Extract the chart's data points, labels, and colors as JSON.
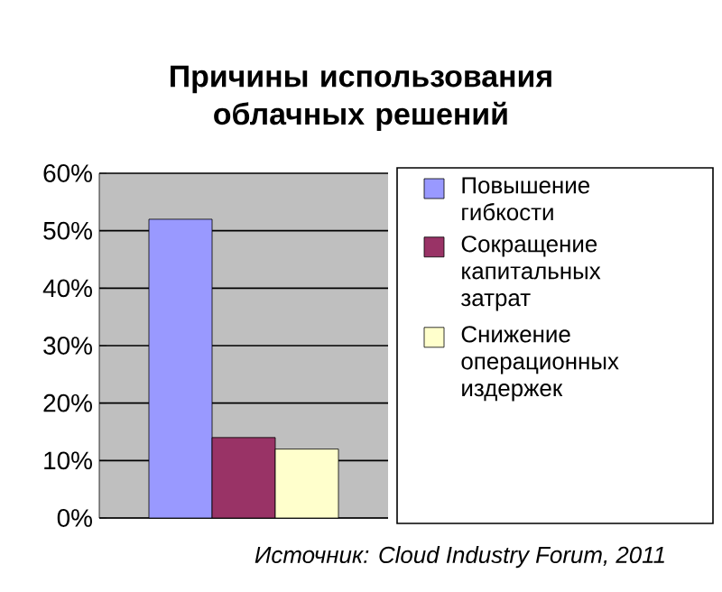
{
  "chart_data": {
    "type": "bar",
    "title": "Причины использования облачных решений",
    "categories": [
      null
    ],
    "series": [
      {
        "name": "Повышение гибкости",
        "color": "#9999ff",
        "values": [
          52
        ]
      },
      {
        "name": "Сокращение капитальных затрат",
        "color": "#993366",
        "values": [
          14
        ]
      },
      {
        "name": "Снижение операционных издержек",
        "color": "#ffffcc",
        "values": [
          12
        ]
      }
    ],
    "ylim": [
      0,
      60
    ],
    "yticks": [
      {
        "value": 0,
        "label": "0%"
      },
      {
        "value": 10,
        "label": "10%"
      },
      {
        "value": 20,
        "label": "20%"
      },
      {
        "value": 30,
        "label": "30%"
      },
      {
        "value": 40,
        "label": "40%"
      },
      {
        "value": 50,
        "label": "50%"
      },
      {
        "value": 60,
        "label": "60%"
      }
    ],
    "grid": "y",
    "legend": "right",
    "annotations": [
      "Источник: Cloud Industry Forum, 2011"
    ]
  }
}
